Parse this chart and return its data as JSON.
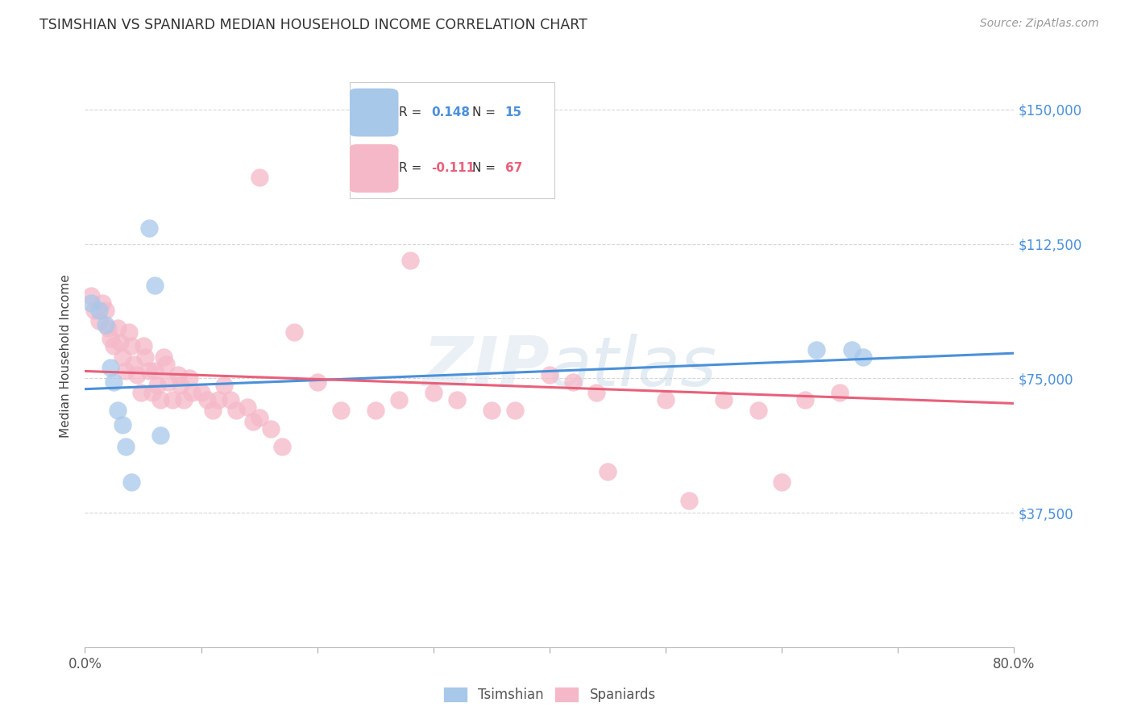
{
  "title": "TSIMSHIAN VS SPANIARD MEDIAN HOUSEHOLD INCOME CORRELATION CHART",
  "source": "Source: ZipAtlas.com",
  "ylabel": "Median Household Income",
  "y_tick_labels": [
    "$37,500",
    "$75,000",
    "$112,500",
    "$150,000"
  ],
  "y_tick_values": [
    37500,
    75000,
    112500,
    150000
  ],
  "ylim": [
    0,
    162500
  ],
  "xlim": [
    0.0,
    0.8
  ],
  "watermark": "ZIPatlas",
  "tsimshian_color": "#a8c8ea",
  "spaniard_color": "#f5b8c8",
  "tsimshian_line_color": "#4a90d9",
  "spaniard_line_color": "#e8607a",
  "tsimshian_x": [
    0.005,
    0.012,
    0.018,
    0.022,
    0.025,
    0.028,
    0.032,
    0.035,
    0.04,
    0.06,
    0.065,
    0.63,
    0.66,
    0.67,
    0.055
  ],
  "tsimshian_y": [
    96000,
    94000,
    90000,
    78000,
    74000,
    66000,
    62000,
    56000,
    46000,
    101000,
    59000,
    83000,
    83000,
    81000,
    117000
  ],
  "spaniard_x": [
    0.005,
    0.008,
    0.012,
    0.015,
    0.018,
    0.02,
    0.022,
    0.025,
    0.028,
    0.03,
    0.032,
    0.035,
    0.038,
    0.04,
    0.042,
    0.045,
    0.048,
    0.05,
    0.052,
    0.055,
    0.058,
    0.06,
    0.062,
    0.065,
    0.068,
    0.07,
    0.072,
    0.075,
    0.08,
    0.082,
    0.085,
    0.09,
    0.092,
    0.1,
    0.105,
    0.11,
    0.115,
    0.12,
    0.125,
    0.13,
    0.14,
    0.145,
    0.15,
    0.16,
    0.17,
    0.2,
    0.22,
    0.25,
    0.27,
    0.3,
    0.32,
    0.35,
    0.37,
    0.4,
    0.42,
    0.44,
    0.5,
    0.52,
    0.55,
    0.58,
    0.6,
    0.62,
    0.65,
    0.28,
    0.45,
    0.18,
    0.15
  ],
  "spaniard_y": [
    98000,
    94000,
    91000,
    96000,
    94000,
    89000,
    86000,
    84000,
    89000,
    85000,
    81000,
    77000,
    88000,
    84000,
    79000,
    76000,
    71000,
    84000,
    81000,
    77000,
    71000,
    77000,
    73000,
    69000,
    81000,
    79000,
    74000,
    69000,
    76000,
    73000,
    69000,
    75000,
    71000,
    71000,
    69000,
    66000,
    69000,
    73000,
    69000,
    66000,
    67000,
    63000,
    64000,
    61000,
    56000,
    74000,
    66000,
    66000,
    69000,
    71000,
    69000,
    66000,
    66000,
    76000,
    74000,
    71000,
    69000,
    41000,
    69000,
    66000,
    46000,
    69000,
    71000,
    108000,
    49000,
    88000,
    131000
  ],
  "background_color": "#ffffff",
  "grid_color": "#cccccc",
  "tsim_line_y0": 72000,
  "tsim_line_y1": 82000,
  "span_line_y0": 77000,
  "span_line_y1": 68000
}
